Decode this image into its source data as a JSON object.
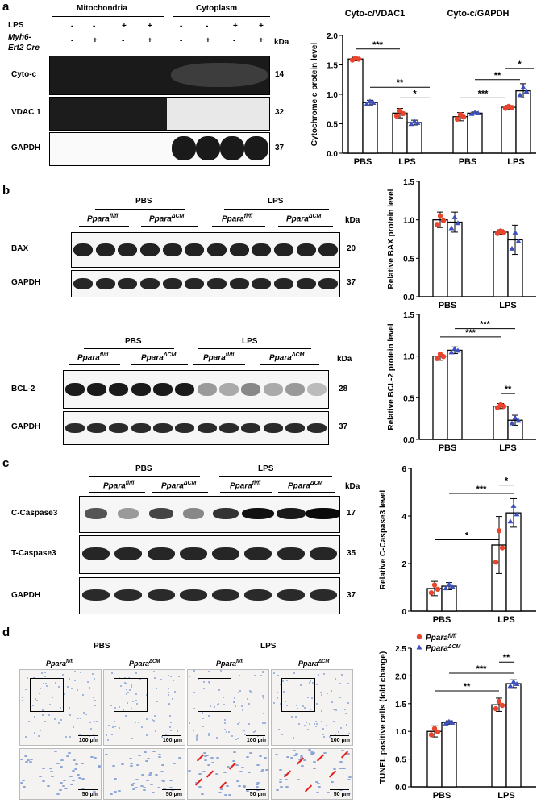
{
  "panels": {
    "a": {
      "letter": "a",
      "header_groups": [
        "Mitochondria",
        "Cytoplasm"
      ],
      "row_labels": [
        "LPS",
        "Myh6-",
        "Ert2 Cre"
      ],
      "lps_signs": [
        "-",
        "-",
        "+",
        "+",
        "-",
        "-",
        "+",
        "+"
      ],
      "cre_signs": [
        "-",
        "+",
        "-",
        "+",
        "-",
        "+",
        "-",
        "+"
      ],
      "kda": "kDa",
      "blots": [
        {
          "label": "Cyto-c",
          "kda": "14"
        },
        {
          "label": "VDAC 1",
          "kda": "32"
        },
        {
          "label": "GAPDH",
          "kda": "37"
        }
      ]
    },
    "b": {
      "letter": "b",
      "groups": [
        "PBS",
        "LPS"
      ],
      "genotypes": [
        "Ppara",
        "fl/fl",
        "Ppara",
        "ΔCM"
      ],
      "kda": "kDa",
      "blots_top": [
        {
          "label": "BAX",
          "kda": "20"
        },
        {
          "label": "GAPDH",
          "kda": "37"
        }
      ],
      "blots_bottom": [
        {
          "label": "BCL-2",
          "kda": "28"
        },
        {
          "label": "GAPDH",
          "kda": "37"
        }
      ]
    },
    "c": {
      "letter": "c",
      "groups": [
        "PBS",
        "LPS"
      ],
      "kda": "kDa",
      "blots": [
        {
          "label": "C-Caspase3",
          "kda": "17"
        },
        {
          "label": "T-Caspase3",
          "kda": "35"
        },
        {
          "label": "GAPDH",
          "kda": "37"
        }
      ]
    },
    "d": {
      "letter": "d",
      "groups": [
        "PBS",
        "LPS"
      ],
      "scalebars_top": [
        "100 μm",
        "100 μm",
        "100 μm",
        "100 μm"
      ],
      "scalebars_bottom": [
        "50 μm",
        "50 μm",
        "50 μm",
        "50 μm"
      ]
    }
  },
  "colors": {
    "fl": "#e8452c",
    "cm": "#3b4fbf"
  },
  "chart_data": [
    {
      "type": "bar",
      "id": "cyto",
      "titles": [
        "Cyto-c/VDAC1",
        "Cyto-c/GAPDH"
      ],
      "categories": [
        "PBS",
        "LPS",
        "PBS",
        "LPS"
      ],
      "ylabel": "Cytochrome c protein level",
      "ylim": [
        0,
        2.0
      ],
      "yticks": [
        "0.0",
        "0.5",
        "1.0",
        "1.5",
        "2.0"
      ],
      "series": [
        {
          "values": [
            1.6,
            0.68,
            0.62,
            0.78
          ],
          "err": [
            0.03,
            0.08,
            0.07,
            0.03
          ]
        },
        {
          "values": [
            0.86,
            0.52,
            0.68,
            1.06
          ],
          "err": [
            0.04,
            0.04,
            0.02,
            0.12
          ]
        }
      ],
      "sig": [
        "***",
        "**",
        "*",
        "***",
        "**",
        "*"
      ]
    },
    {
      "type": "bar",
      "id": "bax",
      "categories": [
        "PBS",
        "LPS"
      ],
      "ylabel": "Relative BAX  protein level",
      "ylim": [
        0,
        1.5
      ],
      "yticks": [
        "0.0",
        "0.5",
        "1.0",
        "1.5"
      ],
      "series": [
        {
          "values": [
            1.0,
            0.84
          ],
          "err": [
            0.1,
            0.03
          ]
        },
        {
          "values": [
            0.97,
            0.74
          ],
          "err": [
            0.13,
            0.19
          ]
        }
      ]
    },
    {
      "type": "bar",
      "id": "bcl2",
      "categories": [
        "PBS",
        "LPS"
      ],
      "ylabel": "Relative BCL-2  protein level",
      "ylim": [
        0,
        1.5
      ],
      "yticks": [
        "0.0",
        "0.5",
        "1.0",
        "1.5"
      ],
      "series": [
        {
          "values": [
            1.0,
            0.4
          ],
          "err": [
            0.05,
            0.03
          ]
        },
        {
          "values": [
            1.07,
            0.23
          ],
          "err": [
            0.04,
            0.06
          ]
        }
      ],
      "sig": [
        "***",
        "***",
        "**"
      ]
    },
    {
      "type": "bar",
      "id": "casp",
      "categories": [
        "PBS",
        "LPS"
      ],
      "ylabel": "Relative C-Caspase3  level",
      "ylim": [
        0,
        6
      ],
      "yticks": [
        "0",
        "2",
        "4",
        "6"
      ],
      "series": [
        {
          "values": [
            0.95,
            2.78
          ],
          "err": [
            0.3,
            1.2
          ]
        },
        {
          "values": [
            1.05,
            4.13
          ],
          "err": [
            0.15,
            0.6
          ]
        }
      ],
      "sig": [
        "*",
        "***",
        "*"
      ]
    },
    {
      "type": "bar",
      "id": "tunel",
      "categories": [
        "PBS",
        "LPS"
      ],
      "ylabel": "TUNEL positive cells  (fold change)",
      "ylim": [
        0,
        2.5
      ],
      "yticks": [
        "0.0",
        "0.5",
        "1.0",
        "1.5",
        "2.0",
        "2.5"
      ],
      "series": [
        {
          "name": "Pparafl/fl",
          "values": [
            1.0,
            1.48
          ],
          "err": [
            0.1,
            0.12
          ]
        },
        {
          "name": "PparaΔCM",
          "values": [
            1.16,
            1.86
          ],
          "err": [
            0.03,
            0.07
          ]
        }
      ],
      "sig": [
        "**",
        "***",
        "**"
      ]
    }
  ]
}
